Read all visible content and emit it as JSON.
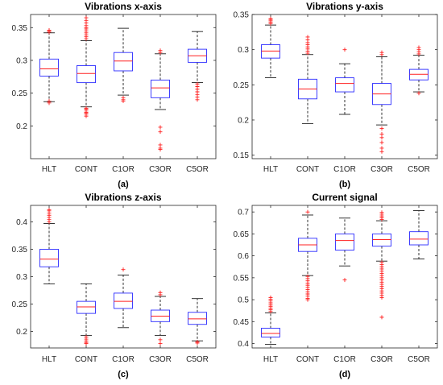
{
  "colors": {
    "box": "#2b2bff",
    "median": "#ff2020",
    "whisker": "#000000",
    "outlier": "#ff2020",
    "axis": "#262626"
  },
  "chart_data": [
    {
      "type": "boxplot",
      "title": "Vibrations x-axis",
      "caption": "(a)",
      "categories": [
        "HLT",
        "CONT",
        "C1OR",
        "C3OR",
        "C5OR"
      ],
      "yticks": [
        "0.2",
        "0.25",
        "0.3",
        "0.35"
      ],
      "ylim": [
        0.15,
        0.37
      ],
      "grid": false,
      "boxes": [
        {
          "whislo": 0.237,
          "q1": 0.276,
          "med": 0.287,
          "q3": 0.302,
          "whishi": 0.342,
          "outliers_low": [
            0.235,
            0.238
          ],
          "outliers_high": [
            0.345,
            0.343,
            0.346
          ]
        },
        {
          "whislo": 0.229,
          "q1": 0.266,
          "med": 0.28,
          "q3": 0.292,
          "whishi": 0.33,
          "outliers_low": [
            0.227,
            0.224,
            0.221,
            0.218,
            0.215,
            0.22,
            0.226
          ],
          "outliers_high": [
            0.333,
            0.336,
            0.339,
            0.342,
            0.345,
            0.348,
            0.35,
            0.353,
            0.357,
            0.361,
            0.365
          ]
        },
        {
          "whislo": 0.247,
          "q1": 0.284,
          "med": 0.299,
          "q3": 0.312,
          "whishi": 0.349,
          "outliers_low": [
            0.243,
            0.24,
            0.238
          ],
          "outliers_high": []
        },
        {
          "whislo": 0.225,
          "q1": 0.243,
          "med": 0.258,
          "q3": 0.27,
          "whishi": 0.31,
          "outliers_low": [
            0.198,
            0.191,
            0.171,
            0.166,
            0.164
          ],
          "outliers_high": [
            0.312,
            0.315
          ]
        },
        {
          "whislo": 0.266,
          "q1": 0.297,
          "med": 0.307,
          "q3": 0.317,
          "whishi": 0.344,
          "outliers_low": [
            0.264,
            0.26,
            0.256,
            0.252,
            0.248,
            0.244,
            0.24
          ],
          "outliers_high": []
        }
      ]
    },
    {
      "type": "boxplot",
      "title": "Vibrations y-axis",
      "caption": "(b)",
      "categories": [
        "HLT",
        "CONT",
        "C1OR",
        "C3OR",
        "C5OR"
      ],
      "yticks": [
        "0.15",
        "0.2",
        "0.25",
        "0.3",
        "0.35"
      ],
      "ylim": [
        0.145,
        0.35
      ],
      "grid": false,
      "boxes": [
        {
          "whislo": 0.26,
          "q1": 0.288,
          "med": 0.298,
          "q3": 0.307,
          "whishi": 0.335,
          "outliers_low": [],
          "outliers_high": [
            0.337,
            0.339,
            0.341,
            0.343,
            0.344
          ]
        },
        {
          "whislo": 0.195,
          "q1": 0.23,
          "med": 0.244,
          "q3": 0.258,
          "whishi": 0.293,
          "outliers_low": [],
          "outliers_high": [
            0.295,
            0.298,
            0.301,
            0.304,
            0.307,
            0.31,
            0.314,
            0.318
          ]
        },
        {
          "whislo": 0.208,
          "q1": 0.24,
          "med": 0.252,
          "q3": 0.26,
          "whishi": 0.28,
          "outliers_low": [],
          "outliers_high": [
            0.3
          ]
        },
        {
          "whislo": 0.193,
          "q1": 0.222,
          "med": 0.237,
          "q3": 0.252,
          "whishi": 0.29,
          "outliers_low": [
            0.188,
            0.18,
            0.175,
            0.168,
            0.16,
            0.155
          ],
          "outliers_high": [
            0.293,
            0.296
          ]
        },
        {
          "whislo": 0.24,
          "q1": 0.257,
          "med": 0.265,
          "q3": 0.272,
          "whishi": 0.292,
          "outliers_low": [
            0.238
          ],
          "outliers_high": [
            0.294,
            0.297,
            0.3,
            0.303
          ]
        }
      ]
    },
    {
      "type": "boxplot",
      "title": "Vibrations z-axis",
      "caption": "(c)",
      "categories": [
        "HLT",
        "CONT",
        "C1OR",
        "C3OR",
        "C5OR"
      ],
      "yticks": [
        "0.2",
        "0.25",
        "0.3",
        "0.35",
        "0.4"
      ],
      "ylim": [
        0.17,
        0.43
      ],
      "grid": false,
      "boxes": [
        {
          "whislo": 0.287,
          "q1": 0.318,
          "med": 0.332,
          "q3": 0.35,
          "whishi": 0.397,
          "outliers_low": [],
          "outliers_high": [
            0.4,
            0.404,
            0.408,
            0.412,
            0.416,
            0.42,
            0.422
          ]
        },
        {
          "whislo": 0.193,
          "q1": 0.233,
          "med": 0.245,
          "q3": 0.255,
          "whishi": 0.287,
          "outliers_low": [
            0.19,
            0.186,
            0.183,
            0.18,
            0.178
          ],
          "outliers_high": []
        },
        {
          "whislo": 0.207,
          "q1": 0.242,
          "med": 0.255,
          "q3": 0.27,
          "whishi": 0.303,
          "outliers_low": [],
          "outliers_high": [
            0.313
          ]
        },
        {
          "whislo": 0.193,
          "q1": 0.218,
          "med": 0.228,
          "q3": 0.239,
          "whishi": 0.264,
          "outliers_low": [
            0.185,
            0.178
          ],
          "outliers_high": [
            0.267,
            0.271
          ]
        },
        {
          "whislo": 0.183,
          "q1": 0.213,
          "med": 0.223,
          "q3": 0.235,
          "whishi": 0.26,
          "outliers_low": [
            0.181,
            0.179
          ],
          "outliers_high": []
        }
      ]
    },
    {
      "type": "boxplot",
      "title": "Current signal",
      "caption": "(d)",
      "categories": [
        "HLT",
        "CONT",
        "C1OR",
        "C3OR",
        "C5OR"
      ],
      "yticks": [
        "0.4",
        "0.45",
        "0.5",
        "0.55",
        "0.6",
        "0.65",
        "0.7"
      ],
      "ylim": [
        0.39,
        0.715
      ],
      "grid": false,
      "boxes": [
        {
          "whislo": 0.398,
          "q1": 0.415,
          "med": 0.423,
          "q3": 0.435,
          "whishi": 0.47,
          "outliers_low": [],
          "outliers_high": [
            0.473,
            0.477,
            0.481,
            0.485,
            0.489,
            0.493,
            0.497,
            0.501,
            0.505
          ]
        },
        {
          "whislo": 0.555,
          "q1": 0.61,
          "med": 0.625,
          "q3": 0.64,
          "whishi": 0.693,
          "outliers_low": [
            0.553,
            0.548,
            0.543,
            0.538,
            0.533,
            0.528,
            0.523,
            0.518,
            0.513,
            0.508,
            0.503,
            0.5
          ],
          "outliers_high": [
            0.7
          ]
        },
        {
          "whislo": 0.577,
          "q1": 0.613,
          "med": 0.635,
          "q3": 0.65,
          "whishi": 0.686,
          "outliers_low": [
            0.545
          ],
          "outliers_high": []
        },
        {
          "whislo": 0.588,
          "q1": 0.622,
          "med": 0.637,
          "q3": 0.65,
          "whishi": 0.68,
          "outliers_low": [
            0.585,
            0.58,
            0.575,
            0.57,
            0.565,
            0.56,
            0.555,
            0.55,
            0.545,
            0.54,
            0.535,
            0.53,
            0.525,
            0.52,
            0.515,
            0.51,
            0.505,
            0.46
          ],
          "outliers_high": [
            0.683,
            0.687,
            0.691,
            0.695,
            0.699
          ]
        },
        {
          "whislo": 0.593,
          "q1": 0.625,
          "med": 0.638,
          "q3": 0.655,
          "whishi": 0.703,
          "outliers_low": [],
          "outliers_high": []
        }
      ]
    }
  ]
}
